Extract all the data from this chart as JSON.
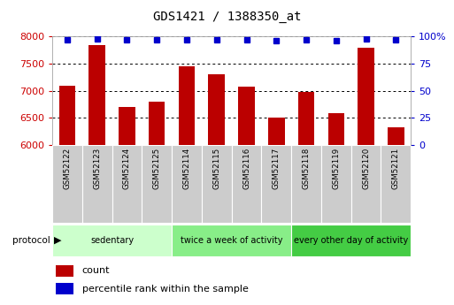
{
  "title": "GDS1421 / 1388350_at",
  "samples": [
    "GSM52122",
    "GSM52123",
    "GSM52124",
    "GSM52125",
    "GSM52114",
    "GSM52115",
    "GSM52116",
    "GSM52117",
    "GSM52118",
    "GSM52119",
    "GSM52120",
    "GSM52121"
  ],
  "counts": [
    7100,
    7850,
    6700,
    6800,
    7450,
    7300,
    7075,
    6500,
    6980,
    6580,
    7800,
    6320
  ],
  "percentiles": [
    97,
    98,
    97,
    97,
    97,
    97,
    97,
    96,
    97,
    96,
    98,
    97
  ],
  "ylim_left": [
    6000,
    8000
  ],
  "ylim_right": [
    0,
    100
  ],
  "yticks_left": [
    6000,
    6500,
    7000,
    7500,
    8000
  ],
  "yticks_right": [
    0,
    25,
    50,
    75,
    100
  ],
  "bar_color": "#bb0000",
  "dot_color": "#0000cc",
  "bar_baseline": 6000,
  "groups": [
    {
      "label": "sedentary",
      "start": 0,
      "end": 3,
      "color": "#ccffcc"
    },
    {
      "label": "twice a week of activity",
      "start": 4,
      "end": 7,
      "color": "#88ee88"
    },
    {
      "label": "every other day of activity",
      "start": 8,
      "end": 11,
      "color": "#44cc44"
    }
  ],
  "protocol_label": "protocol",
  "legend_count_label": "count",
  "legend_pct_label": "percentile rank within the sample",
  "background_color": "#ffffff",
  "tick_label_color_left": "#cc0000",
  "tick_label_color_right": "#0000cc",
  "xlabel_cell_color": "#cccccc",
  "title_fontsize": 10,
  "tick_fontsize": 8,
  "label_fontsize": 7.5
}
